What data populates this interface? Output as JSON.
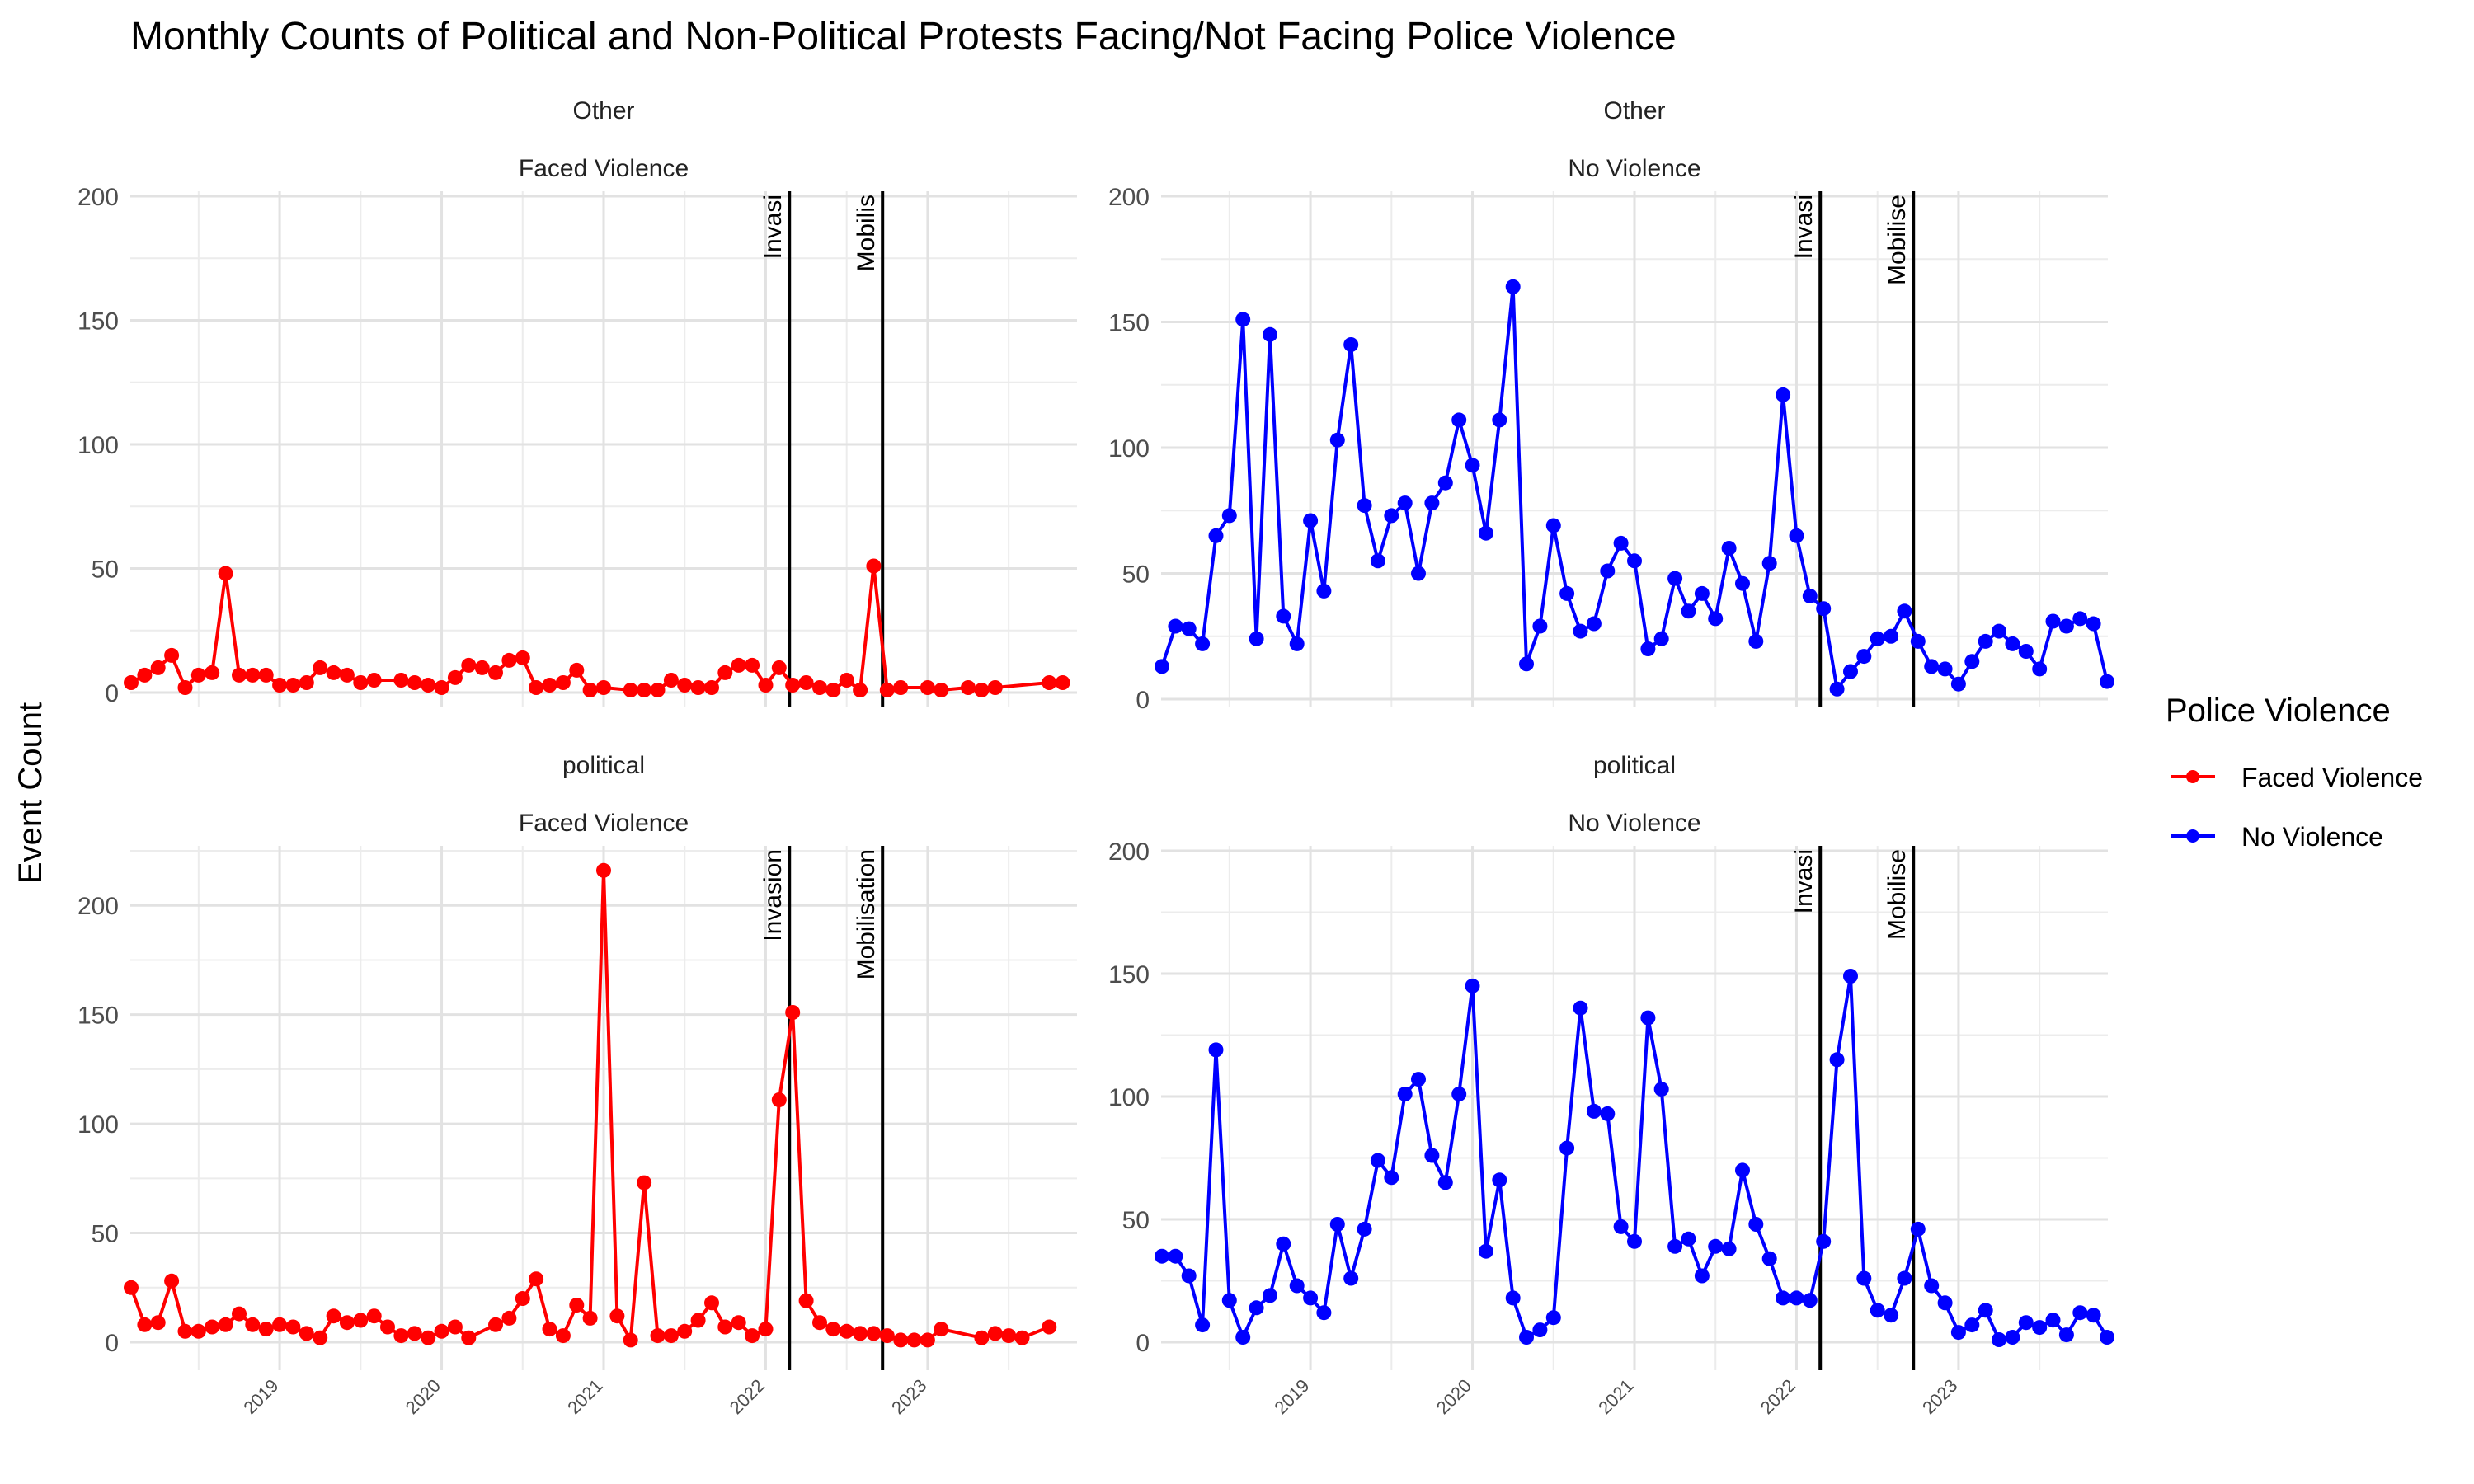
{
  "chart_data": {
    "type": "line",
    "title": "Monthly Counts of Political and Non-Political Protests Facing/Not Facing Police Violence",
    "ylabel": "Event Count",
    "xlabel": "",
    "x_tick_labels": [
      "2019",
      "2020",
      "2021",
      "2022",
      "2023"
    ],
    "x_range": [
      "2018-02",
      "2023-12"
    ],
    "grid": true,
    "legend": {
      "title": "Police Violence",
      "position": "right",
      "entries": [
        {
          "label": "Faced Violence",
          "color": "#ff0000"
        },
        {
          "label": "No Violence",
          "color": "#0000ff"
        }
      ]
    },
    "reference_lines": [
      {
        "label": "Invasion",
        "x": "2022-02-24"
      },
      {
        "label": "Mobilisation",
        "x": "2022-09-21"
      }
    ],
    "panels": [
      {
        "row_label": "Other",
        "col_label": "Faced Violence",
        "color": "#ff0000",
        "ylim": [
          0,
          200
        ],
        "yticks": [
          0,
          50,
          100,
          150,
          200
        ],
        "line_labels": [
          "Invasi",
          "Mobilis"
        ],
        "points": [
          [
            "2018-02",
            4
          ],
          [
            "2018-03",
            7
          ],
          [
            "2018-04",
            10
          ],
          [
            "2018-05",
            15
          ],
          [
            "2018-06",
            2
          ],
          [
            "2018-07",
            7
          ],
          [
            "2018-08",
            8
          ],
          [
            "2018-09",
            48
          ],
          [
            "2018-10",
            7
          ],
          [
            "2018-11",
            7
          ],
          [
            "2018-12",
            7
          ],
          [
            "2019-01",
            3
          ],
          [
            "2019-02",
            3
          ],
          [
            "2019-03",
            4
          ],
          [
            "2019-04",
            10
          ],
          [
            "2019-05",
            8
          ],
          [
            "2019-06",
            7
          ],
          [
            "2019-07",
            4
          ],
          [
            "2019-08",
            5
          ],
          [
            "2019-10",
            5
          ],
          [
            "2019-11",
            4
          ],
          [
            "2019-12",
            3
          ],
          [
            "2020-01",
            2
          ],
          [
            "2020-02",
            6
          ],
          [
            "2020-03",
            11
          ],
          [
            "2020-04",
            10
          ],
          [
            "2020-05",
            8
          ],
          [
            "2020-06",
            13
          ],
          [
            "2020-07",
            14
          ],
          [
            "2020-08",
            2
          ],
          [
            "2020-09",
            3
          ],
          [
            "2020-10",
            4
          ],
          [
            "2020-11",
            9
          ],
          [
            "2020-12",
            1
          ],
          [
            "2021-01",
            2
          ],
          [
            "2021-03",
            1
          ],
          [
            "2021-04",
            1
          ],
          [
            "2021-05",
            1
          ],
          [
            "2021-06",
            5
          ],
          [
            "2021-07",
            3
          ],
          [
            "2021-08",
            2
          ],
          [
            "2021-09",
            2
          ],
          [
            "2021-10",
            8
          ],
          [
            "2021-11",
            11
          ],
          [
            "2021-12",
            11
          ],
          [
            "2022-01",
            3
          ],
          [
            "2022-02",
            10
          ],
          [
            "2022-03",
            3
          ],
          [
            "2022-04",
            4
          ],
          [
            "2022-05",
            2
          ],
          [
            "2022-06",
            1
          ],
          [
            "2022-07",
            5
          ],
          [
            "2022-08",
            1
          ],
          [
            "2022-09",
            51
          ],
          [
            "2022-10",
            1
          ],
          [
            "2022-11",
            2
          ],
          [
            "2023-01",
            2
          ],
          [
            "2023-02",
            1
          ],
          [
            "2023-04",
            2
          ],
          [
            "2023-05",
            1
          ],
          [
            "2023-06",
            2
          ],
          [
            "2023-10",
            4
          ],
          [
            "2023-11",
            4
          ]
        ]
      },
      {
        "row_label": "Other",
        "col_label": "No Violence",
        "color": "#0000ff",
        "ylim": [
          0,
          200
        ],
        "yticks": [
          0,
          50,
          100,
          150,
          200
        ],
        "line_labels": [
          "Invasi",
          "Mobilise"
        ],
        "points": [
          [
            "2018-02",
            13
          ],
          [
            "2018-03",
            29
          ],
          [
            "2018-04",
            28
          ],
          [
            "2018-05",
            22
          ],
          [
            "2018-06",
            65
          ],
          [
            "2018-07",
            73
          ],
          [
            "2018-08",
            151
          ],
          [
            "2018-09",
            24
          ],
          [
            "2018-10",
            145
          ],
          [
            "2018-11",
            33
          ],
          [
            "2018-12",
            22
          ],
          [
            "2019-01",
            71
          ],
          [
            "2019-02",
            43
          ],
          [
            "2019-03",
            103
          ],
          [
            "2019-04",
            141
          ],
          [
            "2019-05",
            77
          ],
          [
            "2019-06",
            55
          ],
          [
            "2019-07",
            73
          ],
          [
            "2019-08",
            78
          ],
          [
            "2019-09",
            50
          ],
          [
            "2019-10",
            78
          ],
          [
            "2019-11",
            86
          ],
          [
            "2019-12",
            111
          ],
          [
            "2020-01",
            93
          ],
          [
            "2020-02",
            66
          ],
          [
            "2020-03",
            111
          ],
          [
            "2020-04",
            164
          ],
          [
            "2020-05",
            14
          ],
          [
            "2020-06",
            29
          ],
          [
            "2020-07",
            69
          ],
          [
            "2020-08",
            42
          ],
          [
            "2020-09",
            27
          ],
          [
            "2020-10",
            30
          ],
          [
            "2020-11",
            51
          ],
          [
            "2020-12",
            62
          ],
          [
            "2021-01",
            55
          ],
          [
            "2021-02",
            20
          ],
          [
            "2021-03",
            24
          ],
          [
            "2021-04",
            48
          ],
          [
            "2021-05",
            35
          ],
          [
            "2021-06",
            42
          ],
          [
            "2021-07",
            32
          ],
          [
            "2021-08",
            60
          ],
          [
            "2021-09",
            46
          ],
          [
            "2021-10",
            23
          ],
          [
            "2021-11",
            54
          ],
          [
            "2021-12",
            121
          ],
          [
            "2022-01",
            65
          ],
          [
            "2022-02",
            41
          ],
          [
            "2022-03",
            36
          ],
          [
            "2022-04",
            4
          ],
          [
            "2022-05",
            11
          ],
          [
            "2022-06",
            17
          ],
          [
            "2022-07",
            24
          ],
          [
            "2022-08",
            25
          ],
          [
            "2022-09",
            35
          ],
          [
            "2022-10",
            23
          ],
          [
            "2022-11",
            13
          ],
          [
            "2022-12",
            12
          ],
          [
            "2023-01",
            6
          ],
          [
            "2023-02",
            15
          ],
          [
            "2023-03",
            23
          ],
          [
            "2023-04",
            27
          ],
          [
            "2023-05",
            22
          ],
          [
            "2023-06",
            19
          ],
          [
            "2023-07",
            12
          ],
          [
            "2023-08",
            31
          ],
          [
            "2023-09",
            29
          ],
          [
            "2023-10",
            32
          ],
          [
            "2023-11",
            30
          ],
          [
            "2023-12",
            7
          ]
        ]
      },
      {
        "row_label": "political",
        "col_label": "Faced Violence",
        "color": "#ff0000",
        "ylim": [
          0,
          225
        ],
        "yticks": [
          0,
          50,
          100,
          150,
          200
        ],
        "line_labels": [
          "Invasion",
          "Mobilisation"
        ],
        "points": [
          [
            "2018-02",
            25
          ],
          [
            "2018-03",
            8
          ],
          [
            "2018-04",
            9
          ],
          [
            "2018-05",
            28
          ],
          [
            "2018-06",
            5
          ],
          [
            "2018-07",
            5
          ],
          [
            "2018-08",
            7
          ],
          [
            "2018-09",
            8
          ],
          [
            "2018-10",
            13
          ],
          [
            "2018-11",
            8
          ],
          [
            "2018-12",
            6
          ],
          [
            "2019-01",
            8
          ],
          [
            "2019-02",
            7
          ],
          [
            "2019-03",
            4
          ],
          [
            "2019-04",
            2
          ],
          [
            "2019-05",
            12
          ],
          [
            "2019-06",
            9
          ],
          [
            "2019-07",
            10
          ],
          [
            "2019-08",
            12
          ],
          [
            "2019-09",
            7
          ],
          [
            "2019-10",
            3
          ],
          [
            "2019-11",
            4
          ],
          [
            "2019-12",
            2
          ],
          [
            "2020-01",
            5
          ],
          [
            "2020-02",
            7
          ],
          [
            "2020-03",
            2
          ],
          [
            "2020-05",
            8
          ],
          [
            "2020-06",
            11
          ],
          [
            "2020-07",
            20
          ],
          [
            "2020-08",
            29
          ],
          [
            "2020-09",
            6
          ],
          [
            "2020-10",
            3
          ],
          [
            "2020-11",
            17
          ],
          [
            "2020-12",
            11
          ],
          [
            "2021-01",
            216
          ],
          [
            "2021-02",
            12
          ],
          [
            "2021-03",
            1
          ],
          [
            "2021-04",
            73
          ],
          [
            "2021-05",
            3
          ],
          [
            "2021-06",
            3
          ],
          [
            "2021-07",
            5
          ],
          [
            "2021-08",
            10
          ],
          [
            "2021-09",
            18
          ],
          [
            "2021-10",
            7
          ],
          [
            "2021-11",
            9
          ],
          [
            "2021-12",
            3
          ],
          [
            "2022-01",
            6
          ],
          [
            "2022-02",
            111
          ],
          [
            "2022-03",
            151
          ],
          [
            "2022-04",
            19
          ],
          [
            "2022-05",
            9
          ],
          [
            "2022-06",
            6
          ],
          [
            "2022-07",
            5
          ],
          [
            "2022-08",
            4
          ],
          [
            "2022-09",
            4
          ],
          [
            "2022-10",
            3
          ],
          [
            "2022-11",
            1
          ],
          [
            "2022-12",
            1
          ],
          [
            "2023-01",
            1
          ],
          [
            "2023-02",
            6
          ],
          [
            "2023-05",
            2
          ],
          [
            "2023-06",
            4
          ],
          [
            "2023-07",
            3
          ],
          [
            "2023-08",
            2
          ],
          [
            "2023-10",
            7
          ]
        ]
      },
      {
        "row_label": "political",
        "col_label": "No Violence",
        "color": "#0000ff",
        "ylim": [
          0,
          200
        ],
        "yticks": [
          0,
          50,
          100,
          150,
          200
        ],
        "line_labels": [
          "Invasi",
          "Mobilise"
        ],
        "points": [
          [
            "2018-02",
            35
          ],
          [
            "2018-03",
            35
          ],
          [
            "2018-04",
            27
          ],
          [
            "2018-05",
            7
          ],
          [
            "2018-06",
            119
          ],
          [
            "2018-07",
            17
          ],
          [
            "2018-08",
            2
          ],
          [
            "2018-09",
            14
          ],
          [
            "2018-10",
            19
          ],
          [
            "2018-11",
            40
          ],
          [
            "2018-12",
            23
          ],
          [
            "2019-01",
            18
          ],
          [
            "2019-02",
            12
          ],
          [
            "2019-03",
            48
          ],
          [
            "2019-04",
            26
          ],
          [
            "2019-05",
            46
          ],
          [
            "2019-06",
            74
          ],
          [
            "2019-07",
            67
          ],
          [
            "2019-08",
            101
          ],
          [
            "2019-09",
            107
          ],
          [
            "2019-10",
            76
          ],
          [
            "2019-11",
            65
          ],
          [
            "2019-12",
            101
          ],
          [
            "2020-01",
            145
          ],
          [
            "2020-02",
            37
          ],
          [
            "2020-03",
            66
          ],
          [
            "2020-04",
            18
          ],
          [
            "2020-05",
            2
          ],
          [
            "2020-06",
            5
          ],
          [
            "2020-07",
            10
          ],
          [
            "2020-08",
            79
          ],
          [
            "2020-09",
            136
          ],
          [
            "2020-10",
            94
          ],
          [
            "2020-11",
            93
          ],
          [
            "2020-12",
            47
          ],
          [
            "2021-01",
            41
          ],
          [
            "2021-02",
            132
          ],
          [
            "2021-03",
            103
          ],
          [
            "2021-04",
            39
          ],
          [
            "2021-05",
            42
          ],
          [
            "2021-06",
            27
          ],
          [
            "2021-07",
            39
          ],
          [
            "2021-08",
            38
          ],
          [
            "2021-09",
            70
          ],
          [
            "2021-10",
            48
          ],
          [
            "2021-11",
            34
          ],
          [
            "2021-12",
            18
          ],
          [
            "2022-01",
            18
          ],
          [
            "2022-02",
            17
          ],
          [
            "2022-03",
            41
          ],
          [
            "2022-04",
            115
          ],
          [
            "2022-05",
            149
          ],
          [
            "2022-06",
            26
          ],
          [
            "2022-07",
            13
          ],
          [
            "2022-08",
            11
          ],
          [
            "2022-09",
            26
          ],
          [
            "2022-10",
            46
          ],
          [
            "2022-11",
            23
          ],
          [
            "2022-12",
            16
          ],
          [
            "2023-01",
            4
          ],
          [
            "2023-02",
            7
          ],
          [
            "2023-03",
            13
          ],
          [
            "2023-04",
            1
          ],
          [
            "2023-05",
            2
          ],
          [
            "2023-06",
            8
          ],
          [
            "2023-07",
            6
          ],
          [
            "2023-08",
            9
          ],
          [
            "2023-09",
            3
          ],
          [
            "2023-10",
            12
          ],
          [
            "2023-11",
            11
          ],
          [
            "2023-12",
            2
          ]
        ]
      }
    ]
  }
}
